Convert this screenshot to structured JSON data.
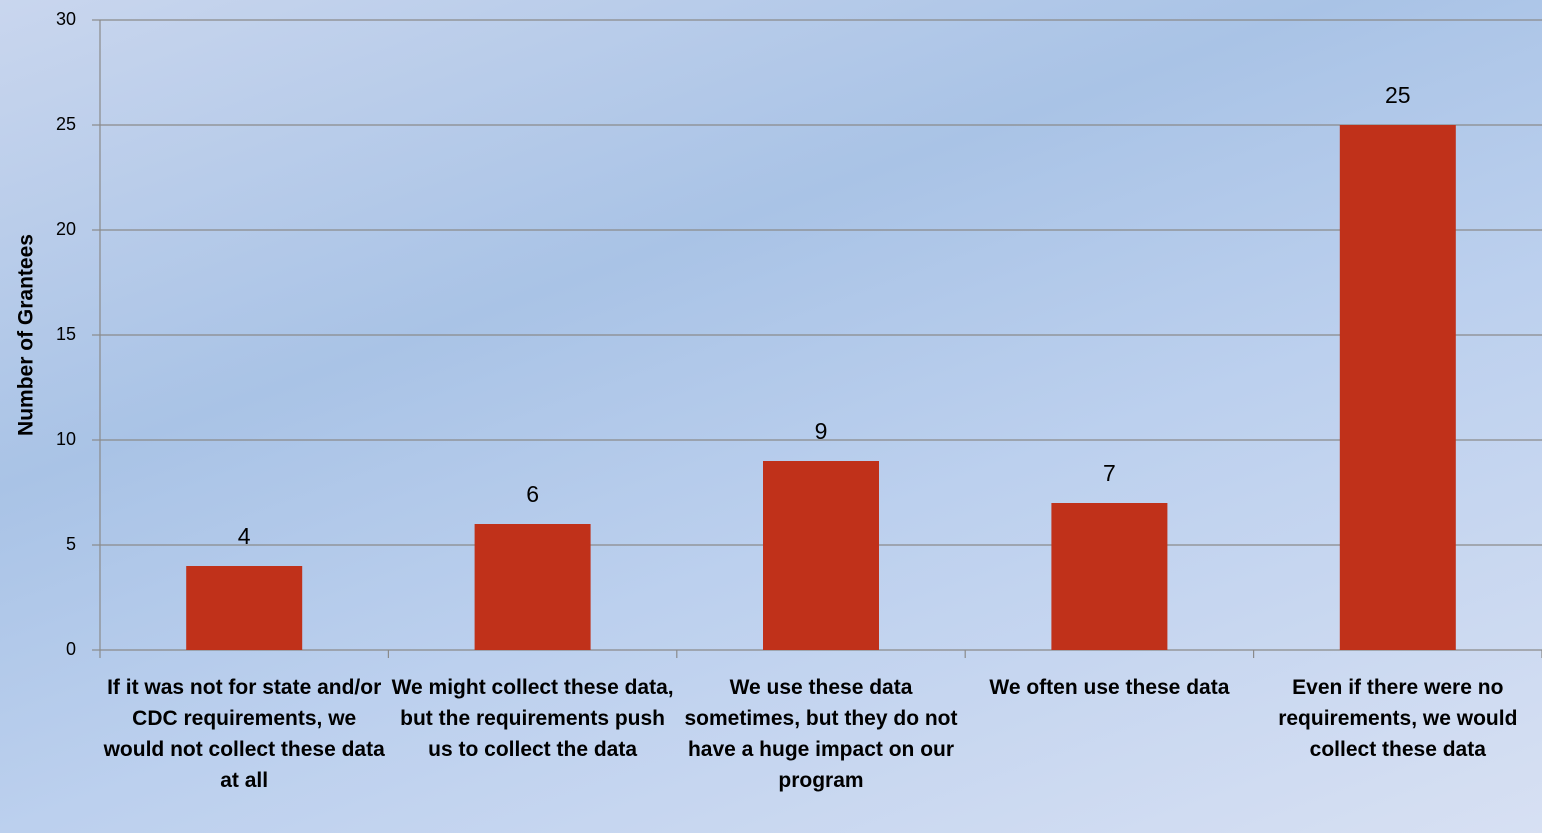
{
  "chart_data": {
    "type": "bar",
    "y_label": "Number of Grantees",
    "categories": [
      "If it was not for state and/or CDC requirements, we would not collect these data at all",
      "We might collect these data, but the requirements push us to collect the data",
      "We use these data sometimes, but they do not have a huge impact on our program",
      "We often use these data",
      "Even if there were no requirements, we would collect these data"
    ],
    "values": [
      4,
      6,
      9,
      7,
      25
    ],
    "color": "#c0311a",
    "ylim": [
      0,
      30
    ],
    "yticks": [
      0,
      5,
      10,
      15,
      20,
      25,
      30
    ],
    "grid": true
  }
}
